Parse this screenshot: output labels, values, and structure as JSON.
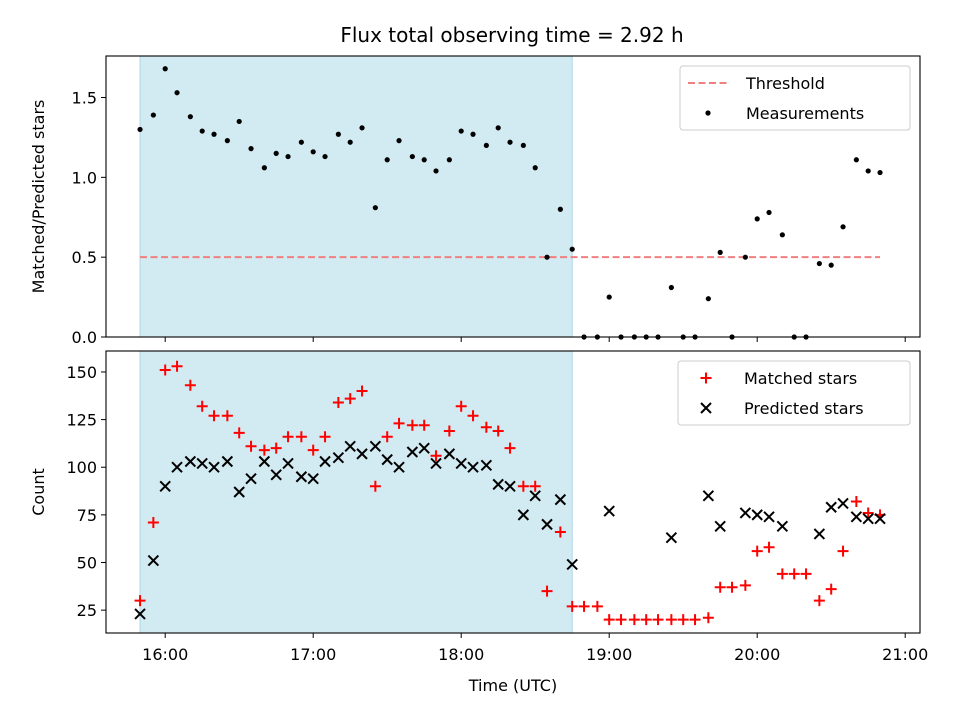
{
  "title": "Flux total observing time = 2.92 h",
  "chart_data": [
    {
      "type": "scatter",
      "ylabel": "Matched/Predicted stars",
      "xlim": [
        15.6,
        21.1
      ],
      "ylim": [
        0,
        1.76
      ],
      "yticks": [
        0.0,
        0.5,
        1.0,
        1.5
      ],
      "ytick_labels": [
        "0.0",
        "0.5",
        "1.0",
        "1.5"
      ],
      "xticks": [
        16,
        17,
        18,
        19,
        20,
        21
      ],
      "shaded_range": [
        15.83,
        18.75
      ],
      "shade_color": "#add8e6",
      "threshold": {
        "value": 0.5,
        "x": [
          15.83,
          20.83
        ],
        "color": "#f08080"
      },
      "legend": {
        "placement": "upper-right",
        "entries": [
          "Threshold",
          "Measurements"
        ]
      },
      "series": [
        {
          "name": "Measurements",
          "marker": "dot",
          "color": "#000000",
          "x": [
            15.83,
            15.92,
            16.0,
            16.08,
            16.17,
            16.25,
            16.33,
            16.42,
            16.5,
            16.58,
            16.67,
            16.75,
            16.83,
            16.92,
            17.0,
            17.08,
            17.17,
            17.25,
            17.33,
            17.42,
            17.5,
            17.58,
            17.67,
            17.75,
            17.83,
            17.92,
            18.0,
            18.08,
            18.17,
            18.25,
            18.33,
            18.42,
            18.5,
            18.58,
            18.67,
            18.75,
            18.83,
            18.92,
            19.0,
            19.08,
            19.17,
            19.25,
            19.33,
            19.42,
            19.5,
            19.58,
            19.67,
            19.75,
            19.83,
            19.92,
            20.0,
            20.08,
            20.17,
            20.25,
            20.33,
            20.42,
            20.5,
            20.58,
            20.67,
            20.75,
            20.83
          ],
          "y": [
            1.3,
            1.39,
            1.68,
            1.53,
            1.38,
            1.29,
            1.27,
            1.23,
            1.35,
            1.18,
            1.06,
            1.15,
            1.13,
            1.22,
            1.16,
            1.13,
            1.27,
            1.22,
            1.31,
            0.81,
            1.11,
            1.23,
            1.13,
            1.11,
            1.04,
            1.11,
            1.29,
            1.27,
            1.2,
            1.31,
            1.22,
            1.2,
            1.06,
            0.5,
            0.8,
            0.55,
            0.0,
            0.0,
            0.25,
            0.0,
            0.0,
            0.0,
            0.0,
            0.31,
            0.0,
            0.0,
            0.24,
            0.53,
            0.0,
            0.5,
            0.74,
            0.78,
            0.64,
            0.0,
            0.0,
            0.46,
            0.45,
            0.69,
            1.11,
            1.04,
            1.03
          ]
        }
      ]
    },
    {
      "type": "scatter",
      "ylabel": "Count",
      "xlabel": "Time (UTC)",
      "xlim": [
        15.6,
        21.1
      ],
      "ylim": [
        13,
        161
      ],
      "yticks": [
        25,
        50,
        75,
        100,
        125,
        150
      ],
      "ytick_labels": [
        "25",
        "50",
        "75",
        "100",
        "125",
        "150"
      ],
      "xticks": [
        16,
        17,
        18,
        19,
        20,
        21
      ],
      "xtick_labels": [
        "16:00",
        "17:00",
        "18:00",
        "19:00",
        "20:00",
        "21:00"
      ],
      "shaded_range": [
        15.83,
        18.75
      ],
      "shade_color": "#add8e6",
      "legend": {
        "placement": "upper-right",
        "entries": [
          "Matched stars",
          "Predicted stars"
        ]
      },
      "series": [
        {
          "name": "Matched stars",
          "marker": "plus",
          "color": "#ff0000",
          "x": [
            15.83,
            15.92,
            16.0,
            16.08,
            16.17,
            16.25,
            16.33,
            16.42,
            16.5,
            16.58,
            16.67,
            16.75,
            16.83,
            16.92,
            17.0,
            17.08,
            17.17,
            17.25,
            17.33,
            17.42,
            17.5,
            17.58,
            17.67,
            17.75,
            17.83,
            17.92,
            18.0,
            18.08,
            18.17,
            18.25,
            18.33,
            18.42,
            18.5,
            18.58,
            18.67,
            18.75,
            18.83,
            18.92,
            19.0,
            19.08,
            19.17,
            19.25,
            19.33,
            19.42,
            19.5,
            19.58,
            19.67,
            19.75,
            19.83,
            19.92,
            20.0,
            20.08,
            20.17,
            20.25,
            20.33,
            20.42,
            20.5,
            20.58,
            20.67,
            20.75,
            20.83
          ],
          "y": [
            30,
            71,
            151,
            153,
            143,
            132,
            127,
            127,
            118,
            111,
            109,
            110,
            116,
            116,
            109,
            116,
            134,
            136,
            140,
            90,
            116,
            123,
            122,
            122,
            106,
            119,
            132,
            127,
            121,
            119,
            110,
            90,
            90,
            35,
            66,
            27,
            27,
            27,
            20,
            20,
            20,
            20,
            20,
            20,
            20,
            20,
            21,
            37,
            37,
            38,
            56,
            58,
            44,
            44,
            44,
            30,
            36,
            56,
            82,
            76,
            75
          ]
        },
        {
          "name": "Predicted stars",
          "marker": "x",
          "color": "#000000",
          "x": [
            15.83,
            15.92,
            16.0,
            16.08,
            16.17,
            16.25,
            16.33,
            16.42,
            16.5,
            16.58,
            16.67,
            16.75,
            16.83,
            16.92,
            17.0,
            17.08,
            17.17,
            17.25,
            17.33,
            17.42,
            17.5,
            17.58,
            17.67,
            17.75,
            17.83,
            17.92,
            18.0,
            18.08,
            18.17,
            18.25,
            18.33,
            18.42,
            18.5,
            18.58,
            18.67,
            18.75,
            19.0,
            19.42,
            19.67,
            19.75,
            19.92,
            20.0,
            20.08,
            20.17,
            20.42,
            20.5,
            20.58,
            20.67,
            20.75,
            20.83
          ],
          "y": [
            23,
            51,
            90,
            100,
            103,
            102,
            100,
            103,
            87,
            94,
            103,
            96,
            102,
            95,
            94,
            103,
            105,
            111,
            107,
            111,
            104,
            100,
            108,
            110,
            102,
            107,
            102,
            100,
            101,
            91,
            90,
            75,
            85,
            70,
            83,
            49,
            77,
            63,
            85,
            69,
            76,
            75,
            74,
            69,
            65,
            79,
            81,
            74,
            73,
            73
          ]
        }
      ]
    }
  ]
}
